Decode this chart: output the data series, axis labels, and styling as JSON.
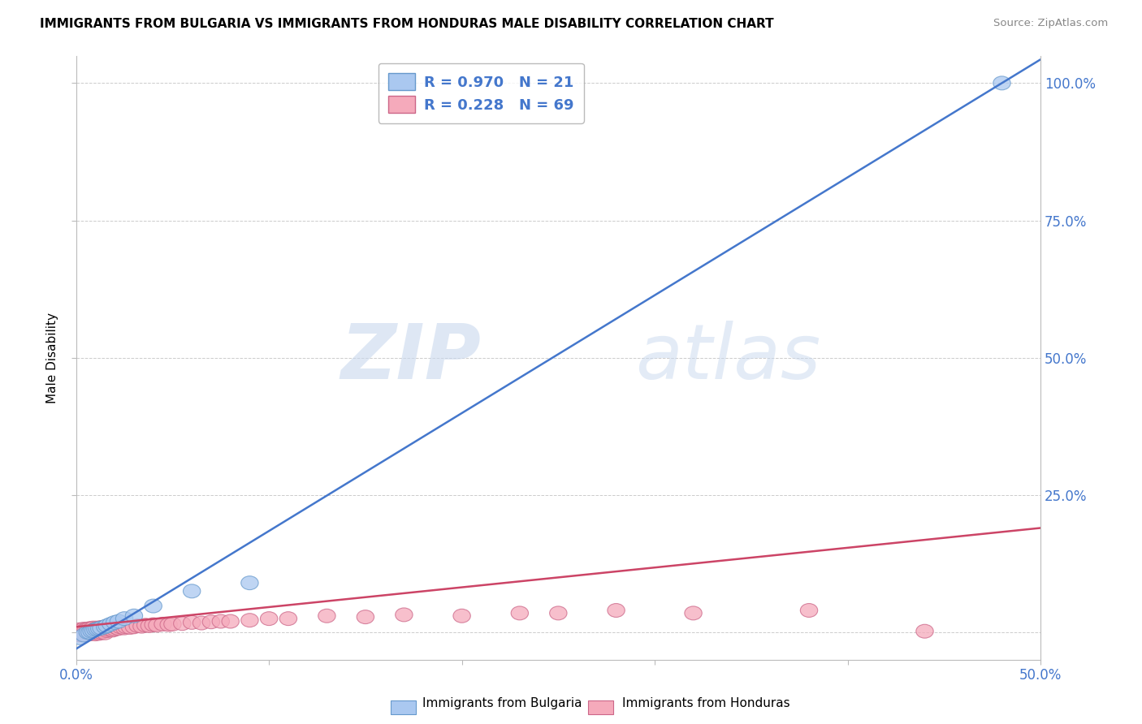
{
  "title": "IMMIGRANTS FROM BULGARIA VS IMMIGRANTS FROM HONDURAS MALE DISABILITY CORRELATION CHART",
  "source": "Source: ZipAtlas.com",
  "ylabel": "Male Disability",
  "xlim": [
    0.0,
    0.5
  ],
  "ylim": [
    -0.05,
    1.05
  ],
  "xticks": [
    0.0,
    0.1,
    0.2,
    0.3,
    0.4,
    0.5
  ],
  "xticklabels": [
    "0.0%",
    "",
    "",
    "",
    "",
    "50.0%"
  ],
  "yticks": [
    0.0,
    0.25,
    0.5,
    0.75,
    1.0
  ],
  "yticklabels_right": [
    "",
    "25.0%",
    "50.0%",
    "75.0%",
    "100.0%"
  ],
  "bulgaria_color": "#aac8f0",
  "bulgaria_edge": "#6699cc",
  "honduras_color": "#f5aabb",
  "honduras_edge": "#cc6688",
  "R_bulgaria": 0.97,
  "N_bulgaria": 21,
  "R_honduras": 0.228,
  "N_honduras": 69,
  "line_bulgaria_color": "#4477cc",
  "line_honduras_color": "#cc4466",
  "legend_text_color": "#4477cc",
  "legend_bulgaria_label": "Immigrants from Bulgaria",
  "legend_honduras_label": "Immigrants from Honduras",
  "watermark_zip": "ZIP",
  "watermark_atlas": "atlas",
  "axis_tick_color": "#4477cc",
  "grid_color": "#cccccc",
  "bulgaria_x": [
    0.002,
    0.004,
    0.006,
    0.007,
    0.008,
    0.009,
    0.01,
    0.011,
    0.012,
    0.013,
    0.015,
    0.016,
    0.018,
    0.02,
    0.022,
    0.025,
    0.03,
    0.04,
    0.06,
    0.09,
    0.48
  ],
  "bulgaria_y": [
    -0.01,
    -0.005,
    0.0,
    0.0,
    0.002,
    0.003,
    0.005,
    0.006,
    0.007,
    0.008,
    0.01,
    0.012,
    0.015,
    0.018,
    0.02,
    0.025,
    0.03,
    0.048,
    0.075,
    0.09,
    1.0
  ],
  "honduras_x": [
    0.001,
    0.002,
    0.002,
    0.003,
    0.003,
    0.004,
    0.004,
    0.005,
    0.005,
    0.006,
    0.006,
    0.007,
    0.007,
    0.008,
    0.008,
    0.009,
    0.009,
    0.01,
    0.01,
    0.011,
    0.011,
    0.012,
    0.012,
    0.013,
    0.013,
    0.014,
    0.014,
    0.015,
    0.015,
    0.016,
    0.017,
    0.018,
    0.019,
    0.02,
    0.021,
    0.022,
    0.023,
    0.025,
    0.026,
    0.028,
    0.03,
    0.032,
    0.034,
    0.036,
    0.038,
    0.04,
    0.042,
    0.045,
    0.048,
    0.05,
    0.055,
    0.06,
    0.065,
    0.07,
    0.075,
    0.08,
    0.09,
    0.1,
    0.11,
    0.13,
    0.15,
    0.17,
    0.2,
    0.23,
    0.25,
    0.28,
    0.32,
    0.38,
    0.44
  ],
  "honduras_y": [
    0.0,
    -0.005,
    0.005,
    -0.003,
    0.004,
    -0.002,
    0.006,
    -0.004,
    0.005,
    -0.002,
    0.006,
    -0.003,
    0.007,
    -0.002,
    0.007,
    -0.001,
    0.008,
    -0.003,
    0.006,
    0.0,
    0.008,
    -0.002,
    0.007,
    0.0,
    0.009,
    0.002,
    0.008,
    -0.001,
    0.008,
    0.003,
    0.005,
    0.007,
    0.004,
    0.006,
    0.009,
    0.007,
    0.01,
    0.008,
    0.01,
    0.009,
    0.01,
    0.012,
    0.011,
    0.013,
    0.012,
    0.014,
    0.013,
    0.015,
    0.014,
    0.015,
    0.016,
    0.018,
    0.017,
    0.019,
    0.02,
    0.02,
    0.022,
    0.025,
    0.025,
    0.03,
    0.028,
    0.032,
    0.03,
    0.035,
    0.035,
    0.04,
    0.035,
    0.04,
    0.002
  ]
}
